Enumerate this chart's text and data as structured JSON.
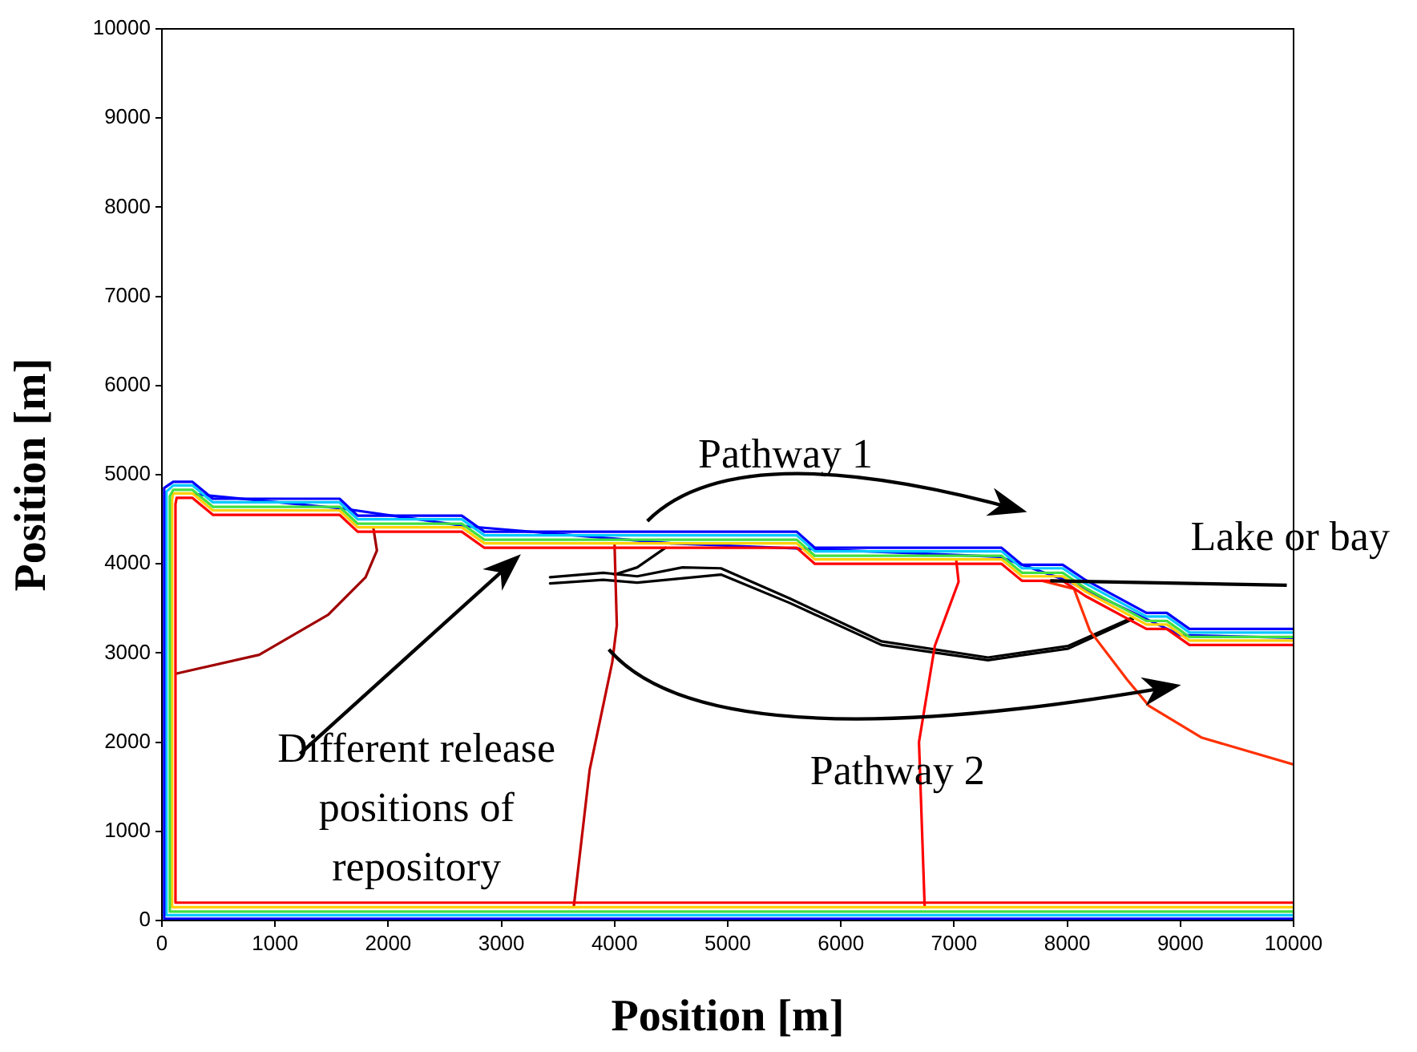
{
  "chart_data": {
    "type": "line",
    "xlabel": "Position [m]",
    "ylabel": "Position [m]",
    "xlim": [
      0,
      10000
    ],
    "ylim": [
      0,
      10000
    ],
    "xticks": [
      0,
      1000,
      2000,
      3000,
      4000,
      5000,
      6000,
      7000,
      8000,
      9000,
      10000
    ],
    "yticks": [
      0,
      1000,
      2000,
      3000,
      4000,
      5000,
      6000,
      7000,
      8000,
      9000,
      10000
    ],
    "marker": "none",
    "line_style": "solid",
    "series": [
      {
        "color": "#0000ff",
        "x": [
          10000,
          20,
          20,
          100,
          270,
          450,
          1570,
          1730,
          2650,
          2850,
          5610,
          5770,
          7420,
          7600,
          7960,
          8160,
          8700,
          8880,
          9080,
          10000
        ],
        "values": [
          20,
          20,
          4850,
          4920,
          4920,
          4730,
          4730,
          4540,
          4540,
          4360,
          4360,
          4180,
          4180,
          3990,
          3990,
          3820,
          3450,
          3450,
          3270,
          3270
        ]
      },
      {
        "color": "#00c8ff",
        "x": [
          10000,
          40,
          40,
          100,
          270,
          450,
          1570,
          1730,
          2650,
          2850,
          5610,
          5770,
          7420,
          7600,
          7960,
          8160,
          8700,
          8880,
          9080,
          10000
        ],
        "values": [
          60,
          60,
          4810,
          4880,
          4880,
          4690,
          4690,
          4500,
          4500,
          4320,
          4320,
          4140,
          4140,
          3950,
          3950,
          3780,
          3410,
          3410,
          3230,
          3230
        ]
      },
      {
        "color": "#40e040",
        "x": [
          10000,
          70,
          70,
          100,
          270,
          450,
          1570,
          1730,
          2650,
          2850,
          5610,
          5770,
          7420,
          7600,
          7960,
          8160,
          8700,
          8880,
          9080,
          10000
        ],
        "values": [
          100,
          100,
          4760,
          4830,
          4830,
          4640,
          4640,
          4450,
          4450,
          4270,
          4270,
          4090,
          4090,
          3900,
          3900,
          3730,
          3360,
          3360,
          3180,
          3180
        ]
      },
      {
        "color": "#ffd000",
        "x": [
          10000,
          90,
          90,
          100,
          270,
          450,
          1570,
          1730,
          2650,
          2850,
          5610,
          5770,
          7420,
          7600,
          7960,
          8160,
          8700,
          8880,
          9080,
          10000
        ],
        "values": [
          150,
          150,
          4720,
          4790,
          4790,
          4600,
          4600,
          4410,
          4410,
          4230,
          4230,
          4050,
          4050,
          3860,
          3860,
          3690,
          3320,
          3320,
          3140,
          3140
        ]
      },
      {
        "color": "#ff0000",
        "x": [
          10000,
          120,
          120,
          130,
          270,
          450,
          1570,
          1730,
          2650,
          2850,
          5610,
          5770,
          7420,
          7600,
          7960,
          8160,
          8700,
          8880,
          9080,
          10000
        ],
        "values": [
          200,
          200,
          4670,
          4740,
          4740,
          4550,
          4550,
          4360,
          4360,
          4180,
          4180,
          4000,
          4000,
          3810,
          3810,
          3640,
          3270,
          3270,
          3090,
          3090
        ]
      },
      {
        "color": "#0000ff",
        "x": [
          300,
          1600,
          2700,
          4500,
          7400,
          8000,
          8700,
          9000,
          10000
        ],
        "values": [
          4780,
          4620,
          4420,
          4230,
          4080,
          3810,
          3380,
          3200,
          3170
        ]
      },
      {
        "color": "#a00000",
        "x": [
          130,
          860,
          1470,
          1800,
          1900,
          1870
        ],
        "values": [
          2770,
          2980,
          3430,
          3850,
          4150,
          4390
        ]
      },
      {
        "color": "#c00000",
        "x": [
          4000,
          4020,
          3980,
          3780,
          3640
        ],
        "values": [
          4210,
          3310,
          2900,
          1690,
          160
        ]
      },
      {
        "color": "#ff0000",
        "x": [
          7020,
          7040,
          6830,
          6690,
          6740
        ],
        "values": [
          4030,
          3800,
          3080,
          2000,
          160
        ]
      },
      {
        "color": "#ff3000",
        "x": [
          7780,
          8060,
          8200,
          8530,
          8720,
          9190,
          10000
        ],
        "values": [
          3810,
          3720,
          3250,
          2700,
          2410,
          2050,
          1750
        ]
      },
      {
        "color": "#000000",
        "x": [
          4000,
          4200,
          4450
        ],
        "values": [
          3880,
          3960,
          4180
        ]
      },
      {
        "color": "#000000",
        "x": [
          3430,
          3900,
          4200,
          4600,
          4940,
          5550,
          6360,
          7300,
          8010,
          8580
        ],
        "values": [
          3850,
          3900,
          3860,
          3960,
          3950,
          3610,
          3130,
          2950,
          3080,
          3400
        ]
      },
      {
        "color": "#000000",
        "x": [
          3430,
          3900,
          4200,
          4940,
          5550,
          6360,
          7300,
          8010,
          8580
        ],
        "values": [
          3780,
          3820,
          3790,
          3880,
          3560,
          3090,
          2920,
          3050,
          3380
        ]
      }
    ],
    "annotations": [
      "Pathway 1",
      "Pathway 2",
      {
        "text": "Lake or bay",
        "x": 7850,
        "y": 3810
      },
      "Different release positions of repository"
    ]
  }
}
